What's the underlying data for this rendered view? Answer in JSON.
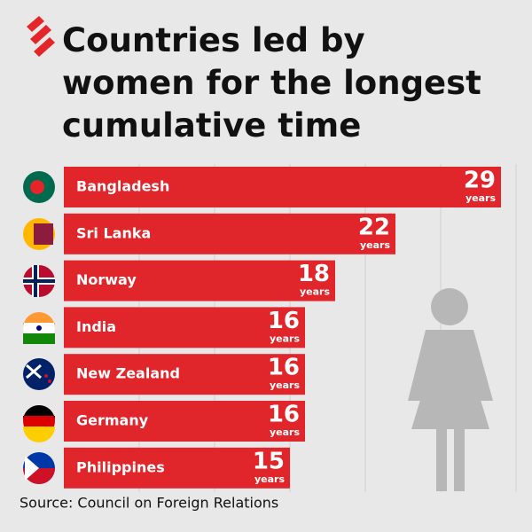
{
  "chart_data": {
    "type": "bar",
    "orientation": "horizontal",
    "title_lines": [
      "Countries led by",
      "women for the longest",
      "cumulative time"
    ],
    "categories": [
      "Bangladesh",
      "Sri Lanka",
      "Norway",
      "India",
      "New Zealand",
      "Germany",
      "Philippines"
    ],
    "values": [
      29,
      22,
      18,
      16,
      16,
      16,
      15
    ],
    "unit": "years",
    "color": "#e1262b",
    "xlim": [
      0,
      30
    ],
    "xticks": [
      5,
      10,
      15,
      20,
      25,
      30
    ],
    "grid": true
  },
  "source": "Source: Council on Foreign Relations"
}
